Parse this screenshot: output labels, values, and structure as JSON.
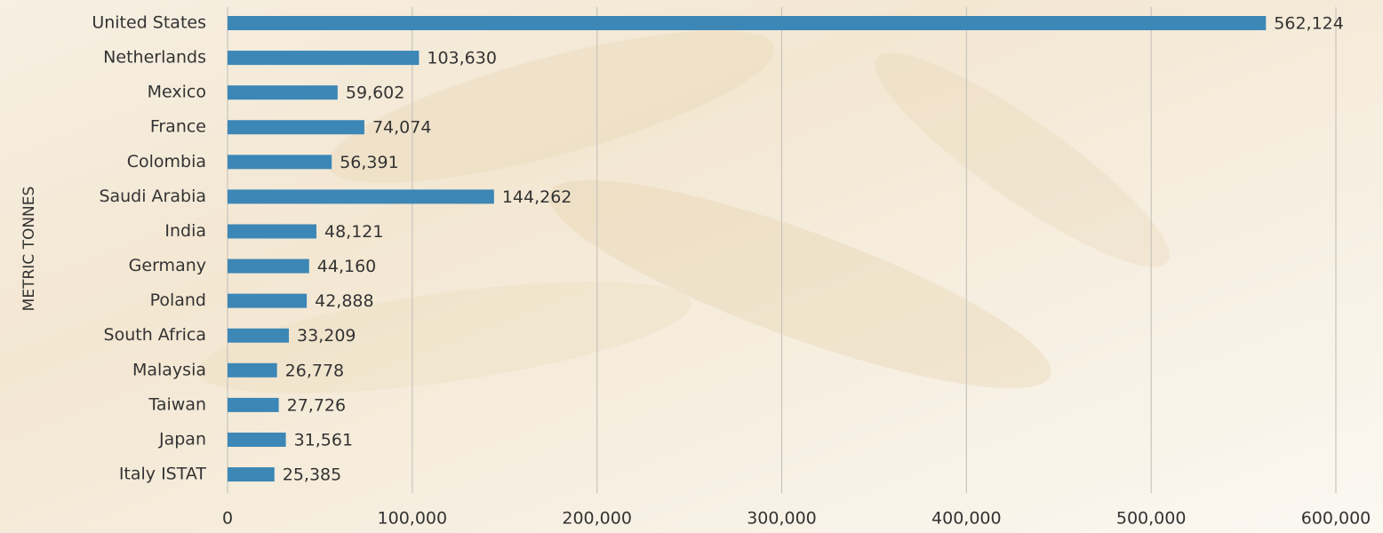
{
  "chart_data": {
    "type": "bar",
    "orientation": "horizontal",
    "y_label": "METRIC TONNES",
    "categories": [
      "United States",
      "Netherlands",
      "Mexico",
      "France",
      "Colombia",
      "Saudi Arabia",
      "India",
      "Germany",
      "Poland",
      "South Africa",
      "Malaysia",
      "Taiwan",
      "Japan",
      "Italy ISTAT"
    ],
    "values": [
      562124,
      103630,
      59602,
      74074,
      56391,
      144262,
      48121,
      44160,
      42888,
      33209,
      26778,
      27726,
      31561,
      25385
    ],
    "value_labels": [
      "562,124",
      "103,630",
      "59,602",
      "74,074",
      "56,391",
      "144,262",
      "48,121",
      "44,160",
      "42,888",
      "33,209",
      "26,778",
      "27,726",
      "31,561",
      "25,385"
    ],
    "color": "#3c87b6",
    "xlim": [
      0,
      600000
    ],
    "xticks": [
      0,
      {
        "value": 100000,
        "label": "100,000"
      },
      {
        "value": 200000,
        "label": "200,000"
      },
      {
        "value": 300000,
        "label": "300,000"
      },
      {
        "value": 400000,
        "label": "400,000"
      },
      {
        "value": 500000,
        "label": "500,000"
      },
      {
        "value": 600000,
        "label": "600,000"
      }
    ],
    "grid": true
  }
}
